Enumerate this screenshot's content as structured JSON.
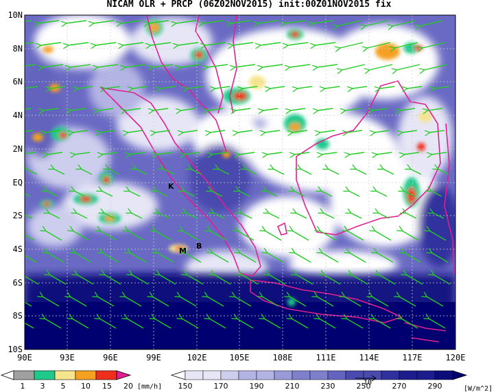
{
  "title": "NICAM OLR + PRCP (06Z02NOV2015) init:00Z01NOV2015 fix",
  "map": {
    "lon_labels": [
      "90E",
      "93E",
      "96E",
      "99E",
      "102E",
      "105E",
      "108E",
      "111E",
      "114E",
      "117E",
      "120E"
    ],
    "lat_labels": [
      "10N",
      "8N",
      "6N",
      "4N",
      "2N",
      "EQ",
      "2S",
      "4S",
      "6S",
      "8S",
      "10S"
    ],
    "place_labels": [
      "K",
      "M",
      "B"
    ],
    "coastline_color": "#e0208f",
    "vector_color": "#22cc22"
  },
  "precip_colorbar": {
    "ticks": [
      "1",
      "3",
      "5",
      "10",
      "15",
      "20"
    ],
    "unit": "[mm/h]",
    "colors": [
      "#a0a0a0",
      "#1fc98c",
      "#f7e58c",
      "#f5a020",
      "#ef2f1e",
      "#e0208f"
    ]
  },
  "olr_colorbar": {
    "ticks": [
      "150",
      "170",
      "190",
      "210",
      "230",
      "250",
      "270",
      "290"
    ],
    "unit": "[W/m^2]",
    "reference_vector_label": "10",
    "colors": [
      "#ffffff",
      "#e6e6f6",
      "#cdcdee",
      "#b4b4e4",
      "#9a9ad8",
      "#7f80cc",
      "#6464be",
      "#4a4aae",
      "#30309e",
      "#1c1c8c",
      "#0c0c7c",
      "#000070"
    ]
  }
}
